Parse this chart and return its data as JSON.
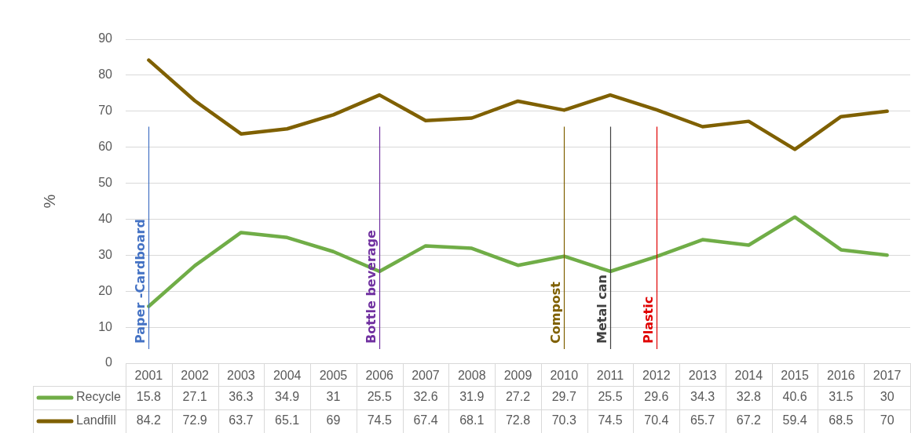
{
  "chart_data": {
    "type": "line",
    "ylabel": "%",
    "categories": [
      "2001",
      "2002",
      "2003",
      "2004",
      "2005",
      "2006",
      "2007",
      "2008",
      "2009",
      "2010",
      "2011",
      "2012",
      "2013",
      "2014",
      "2015",
      "2016",
      "2017"
    ],
    "series": [
      {
        "name": "Recycle",
        "color": "#70ad47",
        "values": [
          15.8,
          27.1,
          36.3,
          34.9,
          31,
          25.5,
          32.6,
          31.9,
          27.2,
          29.7,
          25.5,
          29.6,
          34.3,
          32.8,
          40.6,
          31.5,
          30
        ]
      },
      {
        "name": "Landfill",
        "color": "#7f6000",
        "values": [
          84.2,
          72.9,
          63.7,
          65.1,
          69,
          74.5,
          67.4,
          68.1,
          72.8,
          70.3,
          74.5,
          70.4,
          65.7,
          67.2,
          59.4,
          68.5,
          70
        ]
      }
    ],
    "ylim": [
      0,
      90
    ],
    "yticks": [
      0,
      10,
      20,
      30,
      40,
      50,
      60,
      70,
      80,
      90
    ],
    "grid": "y",
    "legend": "bottom left",
    "data_labels": true,
    "ref_lines": [
      {
        "axis": "x",
        "value": "2001",
        "label": "Paper -Cardboard",
        "color": "#4472c4"
      },
      {
        "axis": "x",
        "value": "2006",
        "label": "Bottle beverage",
        "color": "#7030a0"
      },
      {
        "axis": "x",
        "value": "2010",
        "label": "Compost",
        "color": "#7f6000"
      },
      {
        "axis": "x",
        "value": "2011",
        "label": "Metal can",
        "color": "#404040"
      },
      {
        "axis": "x",
        "value": "2012",
        "label": "Plastic",
        "color": "#e00000"
      }
    ]
  }
}
